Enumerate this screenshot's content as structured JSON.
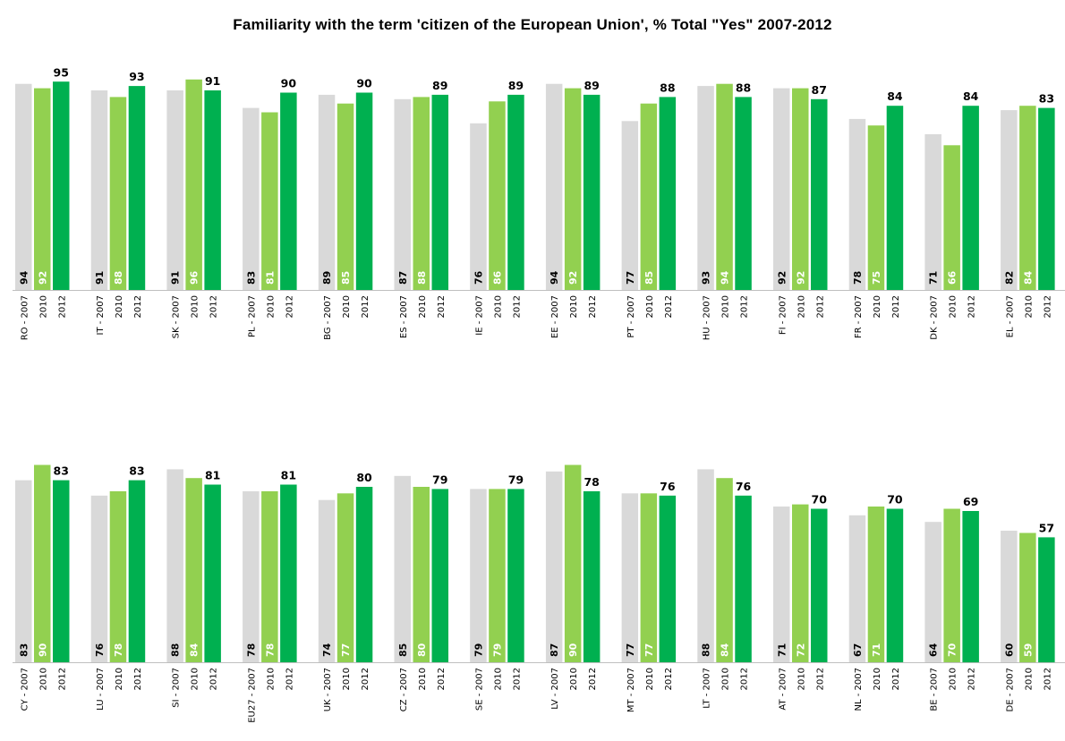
{
  "chart_data": {
    "type": "bar",
    "title": "Familiarity with the term 'citizen of the European Union',  % Total \"Yes\"  2007-2012",
    "years": [
      "2007",
      "2010",
      "2012"
    ],
    "colors": {
      "2007": "#d9d9d9",
      "2010": "#92d050",
      "2012": "#00b050"
    },
    "ylim": [
      0,
      100
    ],
    "panels": [
      {
        "countries": [
          "RO",
          "IT",
          "SK",
          "PL",
          "BG",
          "ES",
          "IE",
          "EE",
          "PT",
          "HU",
          "FI",
          "FR",
          "DK",
          "EL"
        ],
        "series": [
          {
            "year": "2007",
            "values": [
              94,
              91,
              91,
              83,
              89,
              87,
              76,
              94,
              77,
              93,
              92,
              78,
              71,
              82
            ]
          },
          {
            "year": "2010",
            "values": [
              92,
              88,
              96,
              81,
              85,
              88,
              86,
              92,
              85,
              94,
              92,
              75,
              66,
              84
            ]
          },
          {
            "year": "2012",
            "values": [
              95,
              93,
              91,
              90,
              90,
              89,
              89,
              89,
              88,
              88,
              87,
              84,
              84,
              83
            ]
          }
        ]
      },
      {
        "countries": [
          "CY",
          "LU",
          "SI",
          "EU27",
          "UK",
          "CZ",
          "SE",
          "LV",
          "MT",
          "LT",
          "AT",
          "NL",
          "BE",
          "DE"
        ],
        "series": [
          {
            "year": "2007",
            "values": [
              83,
              76,
              88,
              78,
              74,
              85,
              79,
              87,
              77,
              88,
              71,
              67,
              64,
              60
            ]
          },
          {
            "year": "2010",
            "values": [
              90,
              78,
              84,
              78,
              77,
              80,
              79,
              90,
              77,
              84,
              72,
              71,
              70,
              59
            ]
          },
          {
            "year": "2012",
            "values": [
              83,
              83,
              81,
              81,
              80,
              79,
              79,
              78,
              76,
              76,
              70,
              70,
              69,
              57
            ]
          }
        ]
      }
    ]
  }
}
